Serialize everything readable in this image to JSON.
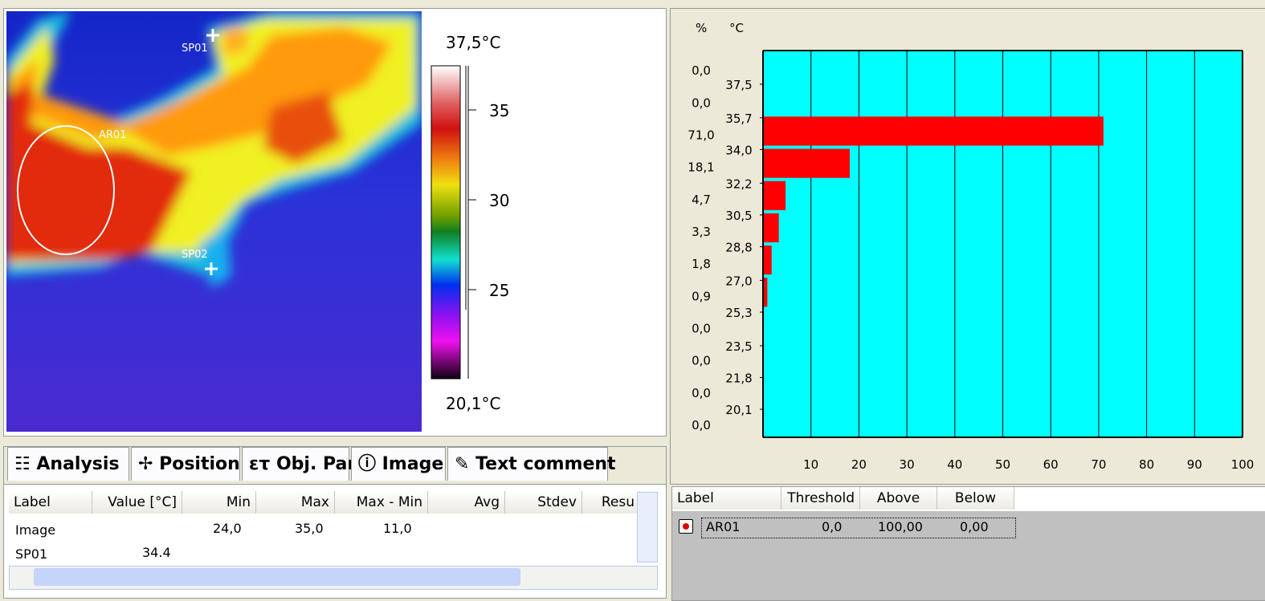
{
  "thermal_image": {
    "spot_1": "SP01",
    "area_1": "AR01",
    "spot_2": "SP02"
  },
  "color_scale": {
    "max_label": "37,5°C",
    "min_label": "20,1°C",
    "ticks": [
      35,
      30,
      25
    ]
  },
  "analysis_tabs": [
    "Analysis",
    "Position",
    "Obj. Par",
    "Image",
    "Text comment"
  ],
  "analysis_table": {
    "columns": [
      "Label",
      "Value [°C]",
      "Min",
      "Max",
      "Max - Min",
      "Avg",
      "Stdev",
      "Resu"
    ],
    "rows": [
      {
        "label": "Image",
        "min": "24,0",
        "max": "35,0",
        "max_min": "11,0"
      },
      {
        "label": "SP01",
        "value": "34.4"
      }
    ]
  },
  "chart_data": {
    "type": "bar",
    "orientation": "horizontal",
    "value_header": "%",
    "y_axis_label": "°C",
    "values": [
      0,
      0,
      71,
      18.1,
      4.7,
      3.3,
      1.8,
      0.9,
      0,
      0,
      0,
      0
    ],
    "value_labels": [
      "0,0",
      "0,0",
      "71,0",
      "18,1",
      "4,7",
      "3,3",
      "1,8",
      "0,9",
      "0,0",
      "0,0",
      "0,0",
      "0,0"
    ],
    "color": "#ff0000",
    "background": "#00ffff",
    "xlim": [
      0,
      100
    ],
    "xticks": [
      10,
      20,
      30,
      40,
      50,
      60,
      70,
      80,
      90,
      100
    ],
    "ylim": [
      18.6,
      39.3
    ],
    "yticks": [
      {
        "value": 37.5,
        "label": "37,5"
      },
      {
        "value": 35.7,
        "label": "35,7"
      },
      {
        "value": 34.0,
        "label": "34,0"
      },
      {
        "value": 32.2,
        "label": "32,2"
      },
      {
        "value": 30.5,
        "label": "30,5"
      },
      {
        "value": 28.8,
        "label": "28,8"
      },
      {
        "value": 27.0,
        "label": "27,0"
      },
      {
        "value": 25.3,
        "label": "25,3"
      },
      {
        "value": 23.5,
        "label": "23,5"
      },
      {
        "value": 21.8,
        "label": "21,8"
      },
      {
        "value": 20.1,
        "label": "20,1"
      }
    ],
    "grid": true
  },
  "threshold_table": {
    "columns": [
      "Label",
      "Threshold",
      "Above",
      "Below"
    ],
    "rows": [
      {
        "label": "AR01",
        "threshold": "0,0",
        "above": "100,00",
        "below": "0,00"
      }
    ]
  }
}
